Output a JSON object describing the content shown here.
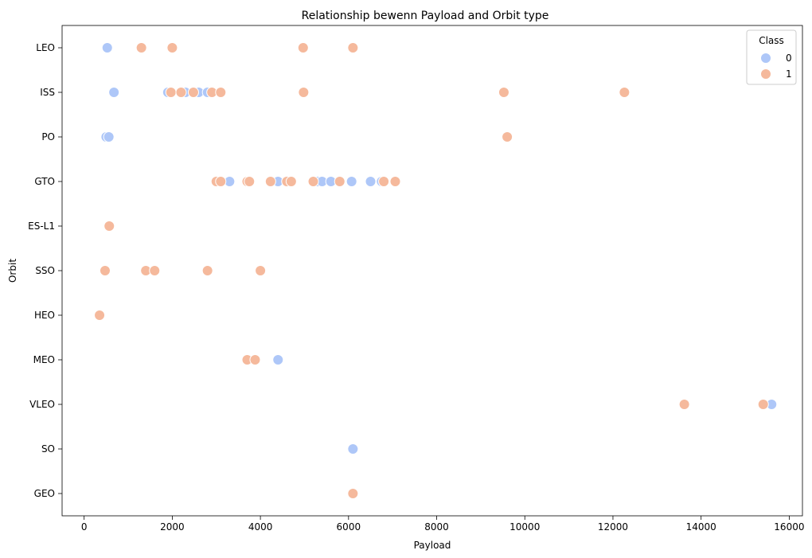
{
  "chart_data": {
    "type": "scatter",
    "title": "Relationship bewenn Payload and Orbit type",
    "xlabel": "Payload",
    "ylabel": "Orbit",
    "xlim": [
      -500,
      16300
    ],
    "xticks": [
      0,
      2000,
      4000,
      6000,
      8000,
      10000,
      12000,
      14000,
      16000
    ],
    "categories": [
      "LEO",
      "ISS",
      "PO",
      "GTO",
      "ES-L1",
      "SSO",
      "HEO",
      "MEO",
      "VLEO",
      "SO",
      "GEO"
    ],
    "grid": false,
    "legend": {
      "title": "Class",
      "placement": "top-right",
      "entries": [
        "0",
        "1"
      ]
    },
    "series": [
      {
        "name": "0",
        "color": "#aec7f8",
        "points": [
          [
            525,
            "LEO"
          ],
          [
            677,
            "ISS"
          ],
          [
            1900,
            "ISS"
          ],
          [
            2300,
            "ISS"
          ],
          [
            2600,
            "ISS"
          ],
          [
            2800,
            "ISS"
          ],
          [
            500,
            "PO"
          ],
          [
            560,
            "PO"
          ],
          [
            3300,
            "GTO"
          ],
          [
            3700,
            "GTO"
          ],
          [
            4400,
            "GTO"
          ],
          [
            4600,
            "GTO"
          ],
          [
            5300,
            "GTO"
          ],
          [
            5400,
            "GTO"
          ],
          [
            5600,
            "GTO"
          ],
          [
            6070,
            "GTO"
          ],
          [
            6500,
            "GTO"
          ],
          [
            6750,
            "GTO"
          ],
          [
            4400,
            "MEO"
          ],
          [
            15600,
            "VLEO"
          ],
          [
            6100,
            "SO"
          ]
        ]
      },
      {
        "name": "1",
        "color": "#f5b99c",
        "points": [
          [
            1300,
            "LEO"
          ],
          [
            2000,
            "LEO"
          ],
          [
            4970,
            "LEO"
          ],
          [
            6100,
            "LEO"
          ],
          [
            1970,
            "ISS"
          ],
          [
            2200,
            "ISS"
          ],
          [
            2480,
            "ISS"
          ],
          [
            2900,
            "ISS"
          ],
          [
            3100,
            "ISS"
          ],
          [
            4980,
            "ISS"
          ],
          [
            9525,
            "ISS"
          ],
          [
            12260,
            "ISS"
          ],
          [
            9600,
            "PO"
          ],
          [
            3000,
            "GTO"
          ],
          [
            3100,
            "GTO"
          ],
          [
            3700,
            "GTO"
          ],
          [
            3750,
            "GTO"
          ],
          [
            4230,
            "GTO"
          ],
          [
            4600,
            "GTO"
          ],
          [
            4700,
            "GTO"
          ],
          [
            5200,
            "GTO"
          ],
          [
            5800,
            "GTO"
          ],
          [
            6800,
            "GTO"
          ],
          [
            7060,
            "GTO"
          ],
          [
            570,
            "ES-L1"
          ],
          [
            475,
            "SSO"
          ],
          [
            1400,
            "SSO"
          ],
          [
            1600,
            "SSO"
          ],
          [
            2800,
            "SSO"
          ],
          [
            4000,
            "SSO"
          ],
          [
            350,
            "HEO"
          ],
          [
            3700,
            "MEO"
          ],
          [
            3880,
            "MEO"
          ],
          [
            13620,
            "VLEO"
          ],
          [
            15410,
            "VLEO"
          ],
          [
            6100,
            "GEO"
          ]
        ]
      }
    ]
  }
}
